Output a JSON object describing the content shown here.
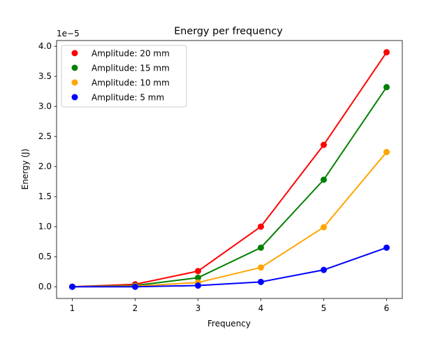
{
  "chart_data": {
    "type": "line",
    "title": "Energy per frequency",
    "xlabel": "Frequency",
    "ylabel": "Energy (J)",
    "y_scale_label": "1e−5",
    "x": [
      1,
      2,
      3,
      4,
      5,
      6
    ],
    "x_ticks": [
      "1",
      "2",
      "3",
      "4",
      "5",
      "6"
    ],
    "y_ticks": [
      "0.0",
      "0.5",
      "1.0",
      "1.5",
      "2.0",
      "2.5",
      "3.0",
      "3.5",
      "4.0"
    ],
    "y_tick_values": [
      0,
      0.5,
      1.0,
      1.5,
      2.0,
      2.5,
      3.0,
      3.5,
      4.0
    ],
    "xlim": [
      0.75,
      6.25
    ],
    "ylim": [
      -0.195,
      4.095
    ],
    "grid": false,
    "legend_position": "upper-left",
    "series": [
      {
        "name": "Amplitude: 20 mm",
        "color": "#ff0000",
        "values": [
          0.0,
          0.04,
          0.26,
          1.0,
          2.36,
          3.9
        ]
      },
      {
        "name": "Amplitude: 15 mm",
        "color": "#008000",
        "values": [
          0.0,
          0.02,
          0.15,
          0.65,
          1.78,
          3.32
        ]
      },
      {
        "name": "Amplitude: 10 mm",
        "color": "#ffa500",
        "values": [
          0.0,
          0.01,
          0.07,
          0.32,
          0.99,
          2.24
        ]
      },
      {
        "name": "Amplitude: 5 mm",
        "color": "#0000ff",
        "values": [
          0.0,
          0.0,
          0.02,
          0.08,
          0.28,
          0.65
        ]
      }
    ]
  }
}
